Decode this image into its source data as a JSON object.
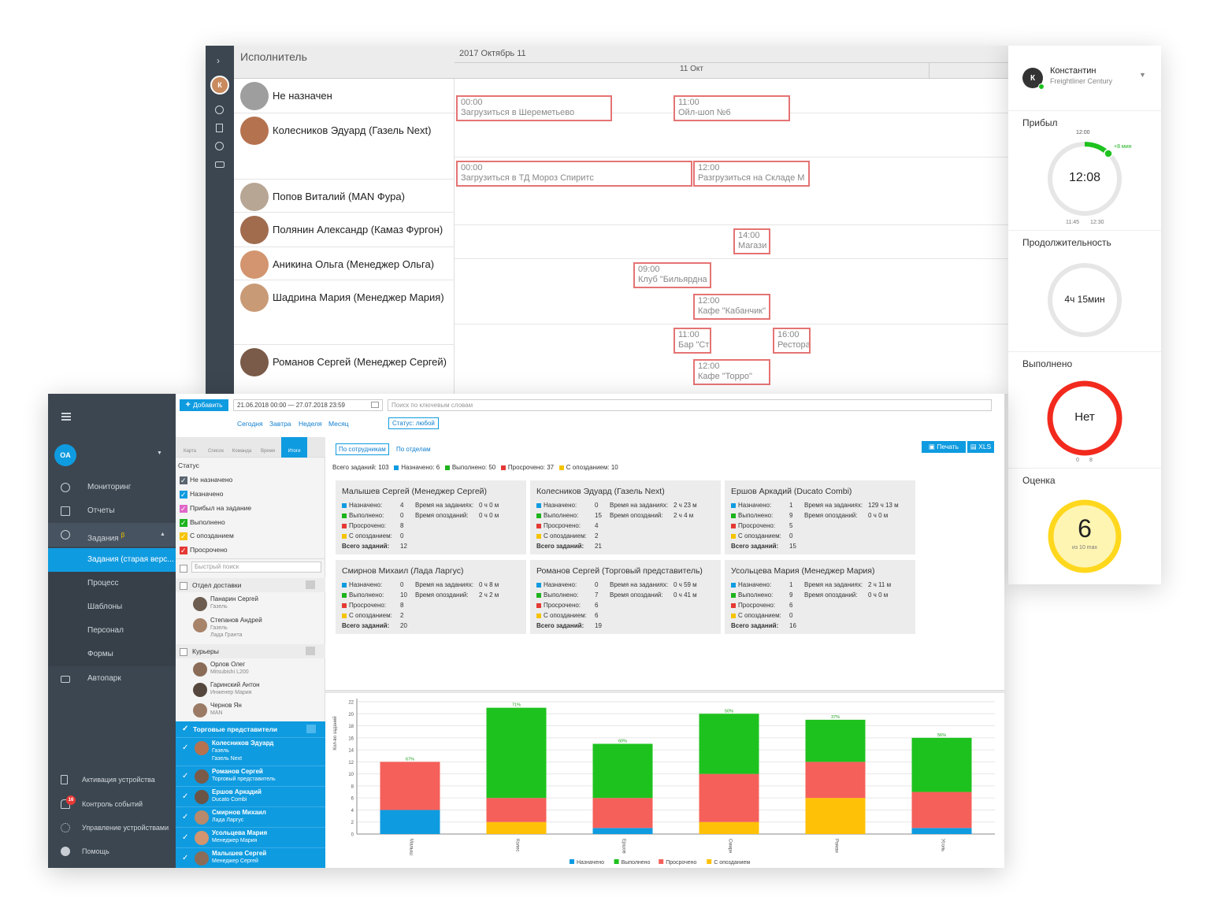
{
  "scheduler": {
    "resource_header": "Исполнитель",
    "date_header": "2017 Октябрь 11",
    "day_label": "11 Окт",
    "resources": [
      {
        "name": "Не назначен"
      },
      {
        "name": "Колесников Эдуард (Газель Next)"
      },
      {
        "name": "Попов Виталий (MAN Фура)"
      },
      {
        "name": "Полянин Александр (Камаз Фургон)"
      },
      {
        "name": "Аникина Ольга (Менеджер Ольга)"
      },
      {
        "name": "Шадрина Мария (Менеджер Мария)"
      },
      {
        "name": "Романов Сергей (Менеджер Сергей)"
      }
    ],
    "events": [
      {
        "time": "00:00",
        "title": "Загрузиться в Шереметьево"
      },
      {
        "time": "11:00",
        "title": "Ойл-шоп №6"
      },
      {
        "time": "00:00",
        "title": "Загрузиться в ТД Мороз Спиритс"
      },
      {
        "time": "12:00",
        "title": "Разгрузиться на Складе М"
      },
      {
        "time": "14:00",
        "title": "Магази"
      },
      {
        "time": "09:00",
        "title": "Клуб \"Бильярдна"
      },
      {
        "time": "12:00",
        "title": "Кафе \"Кабанчик\""
      },
      {
        "time": "11:00",
        "title": "Бар \"Ст"
      },
      {
        "time": "16:00",
        "title": "Рестора"
      },
      {
        "time": "12:00",
        "title": "Кафе \"Торро\""
      }
    ]
  },
  "driver_panel": {
    "name": "Константин",
    "vehicle": "Freightliner Century",
    "arrived": {
      "title": "Прибыл",
      "planned": "12:00",
      "delta": "+8 мин",
      "time": "12:08",
      "tick_left": "11:45",
      "tick_right": "12:30"
    },
    "duration": {
      "title": "Продолжительность",
      "value": "4ч 15мин"
    },
    "done": {
      "title": "Выполнено",
      "value": "Нет",
      "tick_left": "0",
      "tick_right": "8"
    },
    "rating": {
      "title": "Оценка",
      "value": "6",
      "sub": "из 10 max"
    }
  },
  "sidebar": {
    "user_initials": "OA",
    "items": [
      {
        "label": "Мониторинг"
      },
      {
        "label": "Отчеты"
      },
      {
        "label": "Задания",
        "badge": "β"
      },
      {
        "label": "Задания (старая верс..."
      },
      {
        "label": "Процесс"
      },
      {
        "label": "Шаблоны"
      },
      {
        "label": "Персонал"
      },
      {
        "label": "Формы"
      },
      {
        "label": "Автопарк"
      }
    ],
    "bottom": [
      {
        "label": "Активация устройства"
      },
      {
        "label": "Контроль событий",
        "badge": "16"
      },
      {
        "label": "Управление устройствами"
      },
      {
        "label": "Помощь"
      }
    ]
  },
  "toolbar": {
    "add_label": "Добавить",
    "date_range": "21.06.2018 00:00 — 27.07.2018 23:59",
    "search_placeholder": "Поиск по ключевым словам",
    "quick": [
      "Сегодня",
      "Завтра",
      "Неделя",
      "Месяц"
    ],
    "status_label": "Статус: любой",
    "views": [
      "Карта",
      "Список",
      "Команда",
      "Время",
      "Итоги"
    ]
  },
  "filters": {
    "status_title": "Статус",
    "statuses": [
      {
        "label": "Не назначено",
        "color": "#5a6570"
      },
      {
        "label": "Назначено",
        "color": "#0f9be0"
      },
      {
        "label": "Прибыл на задание",
        "color": "#e066c8"
      },
      {
        "label": "Выполнено",
        "color": "#1db31d"
      },
      {
        "label": "С опозданием",
        "color": "#f5c400"
      },
      {
        "label": "Просрочено",
        "color": "#e53935"
      }
    ],
    "quick_search_placeholder": "Быстрый поиск",
    "groups": [
      {
        "title": "Отдел доставки",
        "members": [
          {
            "name": "Панарин Сергей",
            "sub": "Газель"
          },
          {
            "name": "Степанов Андрей",
            "sub": "Газель",
            "sub2": "Лада Гранта"
          }
        ]
      },
      {
        "title": "Курьеры",
        "members": [
          {
            "name": "Орлов Олег",
            "sub": "Mitsubishi L200"
          },
          {
            "name": "Гаринский Антон",
            "sub": "Инженер Мария"
          },
          {
            "name": "Чернов Ян",
            "sub": "MAN"
          }
        ]
      }
    ],
    "selected_group": {
      "title": "Торговые представители",
      "members": [
        {
          "name": "Колесников Эдуард",
          "sub": "Газель",
          "sub2": "Газель Next"
        },
        {
          "name": "Романов Сергей",
          "sub": "Торговый представитель"
        },
        {
          "name": "Ершов Аркадий",
          "sub": "Ducato Combi"
        },
        {
          "name": "Смирнов Михаил",
          "sub": "Лада Ларгус"
        },
        {
          "name": "Усольцева Мария",
          "sub": "Менеджер Мария"
        },
        {
          "name": "Малышев Сергей",
          "sub": "Менеджер Сергей"
        }
      ]
    }
  },
  "summary": {
    "tabs": [
      "По сотрудникам",
      "По отделам"
    ],
    "print_label": "Печать",
    "xls_label": "XLS",
    "totals": {
      "all": "Всего заданий: 103",
      "assigned": "Назначено: 6",
      "done": "Выполнено: 50",
      "overdue": "Просрочено: 37",
      "late": "С опозданием: 10"
    },
    "labels": {
      "assigned": "Назначено:",
      "done": "Выполнено:",
      "overdue": "Просрочено:",
      "late": "С опозданием:",
      "total": "Всего заданий:",
      "time_on": "Время на заданиях:",
      "time_late": "Время опозданий:"
    },
    "cards": [
      {
        "title": "Малышев Сергей (Менеджер Сергей)",
        "assigned": "4",
        "done": "0",
        "overdue": "8",
        "late": "0",
        "total": "12",
        "time_on": "0 ч 0 м",
        "time_late": "0 ч 0 м"
      },
      {
        "title": "Колесников Эдуард (Газель Next)",
        "assigned": "0",
        "done": "15",
        "overdue": "4",
        "late": "2",
        "total": "21",
        "time_on": "2 ч 23 м",
        "time_late": "2 ч 4 м"
      },
      {
        "title": "Ершов Аркадий (Ducato Combi)",
        "assigned": "1",
        "done": "9",
        "overdue": "5",
        "late": "0",
        "total": "15",
        "time_on": "129 ч 13 м",
        "time_late": "0 ч 0 м"
      },
      {
        "title": "Смирнов Михаил (Лада Ларгус)",
        "assigned": "0",
        "done": "10",
        "overdue": "8",
        "late": "2",
        "total": "20",
        "time_on": "0 ч 8 м",
        "time_late": "2 ч 2 м"
      },
      {
        "title": "Романов Сергей (Торговый представитель)",
        "assigned": "0",
        "done": "7",
        "overdue": "6",
        "late": "6",
        "total": "19",
        "time_on": "0 ч 59 м",
        "time_late": "0 ч 41 м"
      },
      {
        "title": "Усольцева Мария (Менеджер Мария)",
        "assigned": "1",
        "done": "9",
        "overdue": "6",
        "late": "0",
        "total": "16",
        "time_on": "2 ч 11 м",
        "time_late": "0 ч 0 м"
      }
    ]
  },
  "chart_data": {
    "type": "bar",
    "stacked": true,
    "ylabel": "Кол-во заданий",
    "ylim": [
      0,
      22
    ],
    "yticks": [
      0,
      2,
      4,
      6,
      8,
      10,
      12,
      14,
      16,
      18,
      20,
      22
    ],
    "categories": [
      "Малыш",
      "Колес",
      "Ершов",
      "Смирн",
      "Роман",
      "Усоль"
    ],
    "series": [
      {
        "name": "Назначено",
        "color": "#0f9be0",
        "values": [
          4,
          0,
          1,
          0,
          0,
          1
        ]
      },
      {
        "name": "С опозданием",
        "color": "#ffc107",
        "values": [
          0,
          2,
          0,
          2,
          6,
          0
        ]
      },
      {
        "name": "Просрочено",
        "color": "#f5605a",
        "values": [
          8,
          4,
          5,
          8,
          6,
          6
        ]
      },
      {
        "name": "Выполнено",
        "color": "#1ec21e",
        "values": [
          0,
          15,
          9,
          10,
          7,
          9
        ]
      }
    ],
    "top_labels": [
      "67%",
      "71%",
      "60%",
      "50%",
      "37%",
      "56%"
    ],
    "legend": [
      "Назначено",
      "Выполнено",
      "Просрочено",
      "С опозданием"
    ]
  }
}
